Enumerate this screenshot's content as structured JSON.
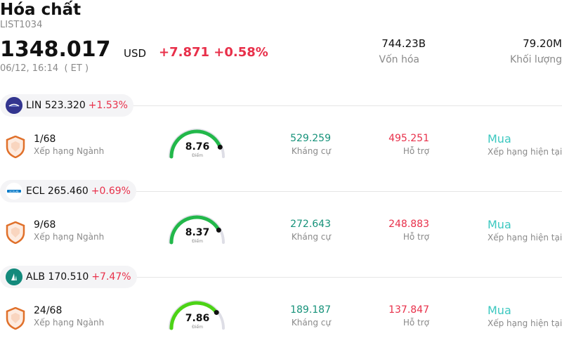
{
  "header": {
    "title": "Hóa chất",
    "code": "LIST1034",
    "price": "1348.017",
    "currency": "USD",
    "change": "+7.871 +0.58%",
    "datetime": "06/12, 16:14  ( ET )",
    "market_cap_value": "744.23B",
    "market_cap_label": "Vốn hóa",
    "volume_value": "79.20M",
    "volume_label": "Khối lượng"
  },
  "colors": {
    "up_red": "#e8304a",
    "resistance_green": "#16927a",
    "rating_teal": "#3cc8c0",
    "gauge_green": "#22b84a",
    "gauge_light_green": "#4cd316"
  },
  "stocks": [
    {
      "ticker_line": "LIN 523.320",
      "pct": "+1.53%",
      "logo_icon": "linde-logo-icon",
      "rank": "1/68",
      "rank_label": "Xếp hạng Ngành",
      "score": "8.76",
      "score_fraction": 0.876,
      "score_label": "Điểm",
      "resistance": "529.259",
      "resistance_label": "Kháng cự",
      "support": "495.251",
      "support_label": "Hỗ trợ",
      "rating": "Mua",
      "rating_label": "Xếp hạng hiện tại"
    },
    {
      "ticker_line": "ECL 265.460",
      "pct": "+0.69%",
      "logo_icon": "ecolab-logo-icon",
      "rank": "9/68",
      "rank_label": "Xếp hạng Ngành",
      "score": "8.37",
      "score_fraction": 0.837,
      "score_label": "Điểm",
      "resistance": "272.643",
      "resistance_label": "Kháng cự",
      "support": "248.883",
      "support_label": "Hỗ trợ",
      "rating": "Mua",
      "rating_label": "Xếp hạng hiện tại"
    },
    {
      "ticker_line": "ALB 170.510",
      "pct": "+7.47%",
      "logo_icon": "albemarle-logo-icon",
      "rank": "24/68",
      "rank_label": "Xếp hạng Ngành",
      "score": "7.86",
      "score_fraction": 0.786,
      "score_label": "Điểm",
      "resistance": "189.187",
      "resistance_label": "Kháng cự",
      "support": "137.847",
      "support_label": "Hỗ trợ",
      "rating": "Mua",
      "rating_label": "Xếp hạng hiện tại"
    }
  ]
}
